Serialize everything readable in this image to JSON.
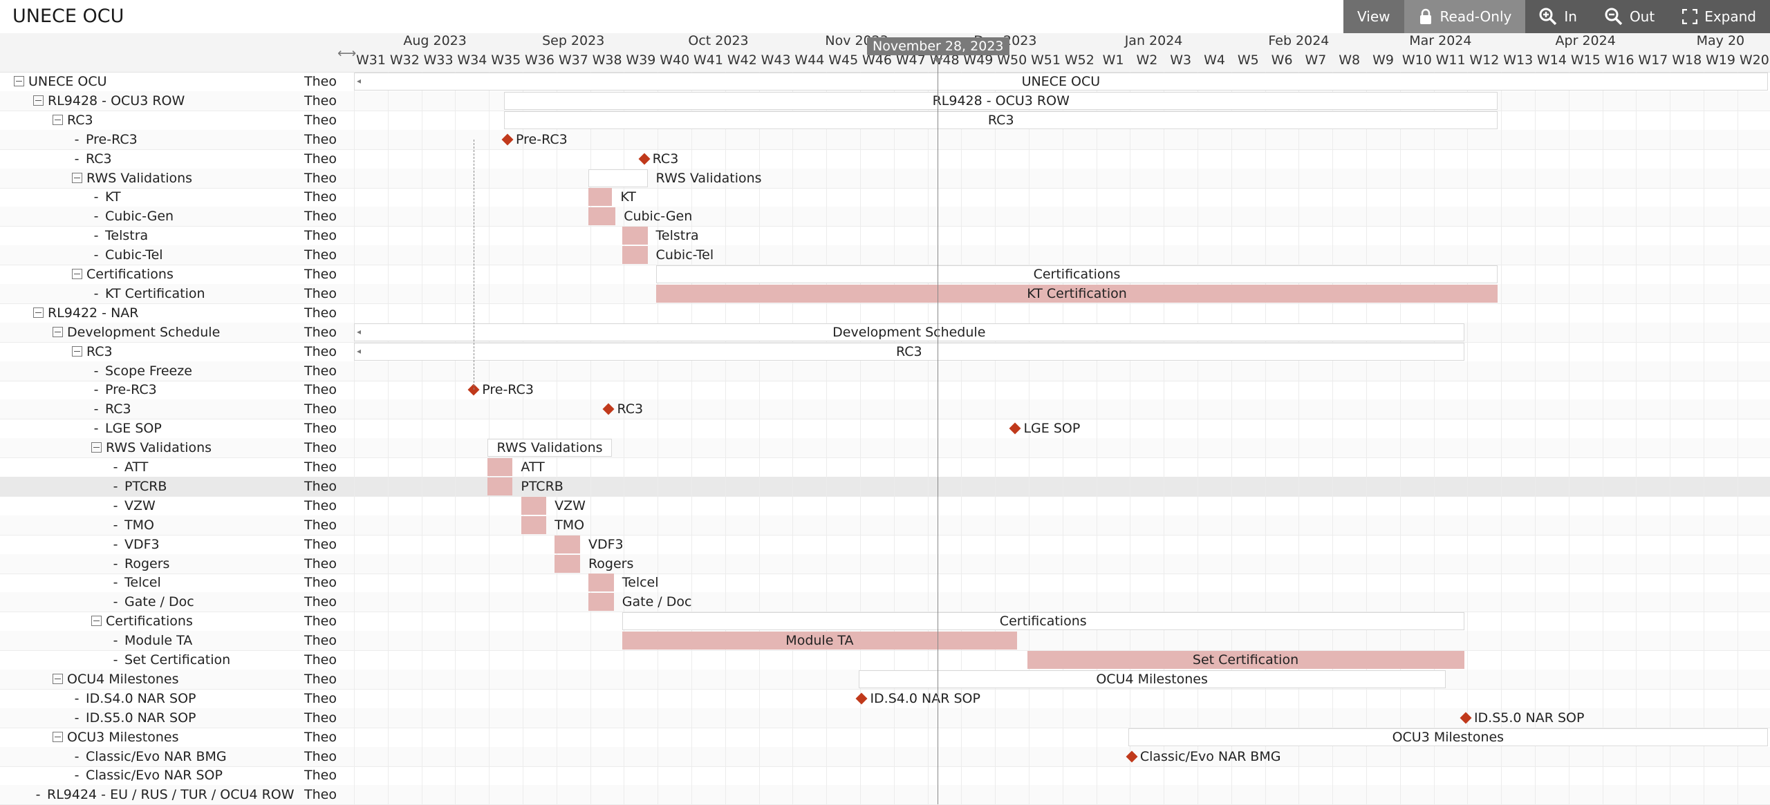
{
  "app": {
    "title": "UNECE OCU"
  },
  "toolbar": {
    "view_label": "View",
    "readonly_label": "Read-Only",
    "zoom_in_label": "In",
    "zoom_out_label": "Out",
    "expand_label": "Expand"
  },
  "timeline": {
    "months": [
      "Aug 2023",
      "Sep 2023",
      "Oct 2023",
      "Nov 2023",
      "Dec 2023",
      "Jan 2024",
      "Feb 2024",
      "Mar 2024",
      "Apr 2024",
      "May 20"
    ],
    "weeks": [
      "W31",
      "W32",
      "W33",
      "W34",
      "W35",
      "W36",
      "W37",
      "W38",
      "W39",
      "W40",
      "W41",
      "W42",
      "W43",
      "W44",
      "W45",
      "W46",
      "W47",
      "W48",
      "W49",
      "W50",
      "W51",
      "W52",
      "W1",
      "W2",
      "W3",
      "W4",
      "W5",
      "W6",
      "W7",
      "W8",
      "W9",
      "W10",
      "W11",
      "W12",
      "W13",
      "W14",
      "W15",
      "W16",
      "W17",
      "W18",
      "W19",
      "W20"
    ],
    "today_label": "November 28, 2023"
  },
  "rows": [
    {
      "label": "UNECE OCU",
      "owner": "Theo",
      "level": 0,
      "kind": "group"
    },
    {
      "label": "RL9428 - OCU3 ROW",
      "owner": "Theo",
      "level": 1,
      "kind": "group"
    },
    {
      "label": "RC3",
      "owner": "Theo",
      "level": 2,
      "kind": "group"
    },
    {
      "label": "Pre-RC3",
      "owner": "Theo",
      "level": 3,
      "kind": "leaf"
    },
    {
      "label": "RC3",
      "owner": "Theo",
      "level": 3,
      "kind": "leaf"
    },
    {
      "label": "RWS Validations",
      "owner": "Theo",
      "level": 3,
      "kind": "group"
    },
    {
      "label": "KT",
      "owner": "Theo",
      "level": 4,
      "kind": "leaf"
    },
    {
      "label": "Cubic-Gen",
      "owner": "Theo",
      "level": 4,
      "kind": "leaf"
    },
    {
      "label": "Telstra",
      "owner": "Theo",
      "level": 4,
      "kind": "leaf"
    },
    {
      "label": "Cubic-Tel",
      "owner": "Theo",
      "level": 4,
      "kind": "leaf"
    },
    {
      "label": "Certifications",
      "owner": "Theo",
      "level": 3,
      "kind": "group"
    },
    {
      "label": "KT Certification",
      "owner": "Theo",
      "level": 4,
      "kind": "leaf"
    },
    {
      "label": "RL9422 - NAR",
      "owner": "Theo",
      "level": 1,
      "kind": "group"
    },
    {
      "label": "Development Schedule",
      "owner": "Theo",
      "level": 2,
      "kind": "group"
    },
    {
      "label": "RC3",
      "owner": "Theo",
      "level": 3,
      "kind": "group"
    },
    {
      "label": "Scope Freeze",
      "owner": "Theo",
      "level": 4,
      "kind": "leaf"
    },
    {
      "label": "Pre-RC3",
      "owner": "Theo",
      "level": 4,
      "kind": "leaf"
    },
    {
      "label": "RC3",
      "owner": "Theo",
      "level": 4,
      "kind": "leaf"
    },
    {
      "label": "LGE SOP",
      "owner": "Theo",
      "level": 4,
      "kind": "leaf"
    },
    {
      "label": "RWS Validations",
      "owner": "Theo",
      "level": 4,
      "kind": "group"
    },
    {
      "label": "ATT",
      "owner": "Theo",
      "level": 5,
      "kind": "leaf"
    },
    {
      "label": "PTCRB",
      "owner": "Theo",
      "level": 5,
      "kind": "leaf"
    },
    {
      "label": "VZW",
      "owner": "Theo",
      "level": 5,
      "kind": "leaf"
    },
    {
      "label": "TMO",
      "owner": "Theo",
      "level": 5,
      "kind": "leaf"
    },
    {
      "label": "VDF3",
      "owner": "Theo",
      "level": 5,
      "kind": "leaf"
    },
    {
      "label": "Rogers",
      "owner": "Theo",
      "level": 5,
      "kind": "leaf"
    },
    {
      "label": "Telcel",
      "owner": "Theo",
      "level": 5,
      "kind": "leaf"
    },
    {
      "label": "Gate / Doc",
      "owner": "Theo",
      "level": 5,
      "kind": "leaf"
    },
    {
      "label": "Certifications",
      "owner": "Theo",
      "level": 4,
      "kind": "group"
    },
    {
      "label": "Module TA",
      "owner": "Theo",
      "level": 5,
      "kind": "leaf"
    },
    {
      "label": "Set Certification",
      "owner": "Theo",
      "level": 5,
      "kind": "leaf"
    },
    {
      "label": "OCU4 Milestones",
      "owner": "Theo",
      "level": 2,
      "kind": "group"
    },
    {
      "label": "ID.S4.0 NAR SOP",
      "owner": "Theo",
      "level": 3,
      "kind": "leaf"
    },
    {
      "label": "ID.S5.0 NAR SOP",
      "owner": "Theo",
      "level": 3,
      "kind": "leaf"
    },
    {
      "label": "OCU3 Milestones",
      "owner": "Theo",
      "level": 2,
      "kind": "group"
    },
    {
      "label": "Classic/Evo NAR BMG",
      "owner": "Theo",
      "level": 3,
      "kind": "leaf"
    },
    {
      "label": "Classic/Evo NAR SOP",
      "owner": "Theo",
      "level": 3,
      "kind": "leaf"
    },
    {
      "label": "RL9424 - EU / RUS / TUR / OCU4 ROW",
      "owner": "Theo",
      "level": 1,
      "kind": "leaf"
    }
  ],
  "bars": [
    {
      "row": 0,
      "type": "summary",
      "start": 0,
      "end": 41.9,
      "label": "UNECE OCU",
      "label_pos": "inside",
      "caret": "left"
    },
    {
      "row": 1,
      "type": "summary",
      "start": 4.45,
      "end": 33.9,
      "label": "RL9428 - OCU3 ROW",
      "label_pos": "inside"
    },
    {
      "row": 2,
      "type": "summary",
      "start": 4.45,
      "end": 33.9,
      "label": "RC3",
      "label_pos": "inside"
    },
    {
      "row": 3,
      "type": "milestone",
      "at": 4.55,
      "label": "Pre-RC3"
    },
    {
      "row": 4,
      "type": "milestone",
      "at": 8.6,
      "label": "RC3"
    },
    {
      "row": 5,
      "type": "summary",
      "start": 6.95,
      "end": 8.7,
      "label": "RWS Validations",
      "label_pos": "right"
    },
    {
      "row": 6,
      "type": "task",
      "start": 6.95,
      "end": 7.65,
      "label": "KT",
      "label_pos": "right"
    },
    {
      "row": 7,
      "type": "task",
      "start": 6.95,
      "end": 7.75,
      "label": "Cubic-Gen",
      "label_pos": "right"
    },
    {
      "row": 8,
      "type": "task",
      "start": 7.95,
      "end": 8.7,
      "label": "Telstra",
      "label_pos": "right"
    },
    {
      "row": 9,
      "type": "task",
      "start": 7.95,
      "end": 8.7,
      "label": "Cubic-Tel",
      "label_pos": "right"
    },
    {
      "row": 10,
      "type": "summary",
      "start": 8.95,
      "end": 33.9,
      "label": "Certifications",
      "label_pos": "inside"
    },
    {
      "row": 11,
      "type": "task",
      "start": 8.95,
      "end": 33.9,
      "label": "KT Certification",
      "label_pos": "inside"
    },
    {
      "row": 13,
      "type": "summary",
      "start": 0,
      "end": 32.9,
      "label": "Development Schedule",
      "label_pos": "inside",
      "caret": "left"
    },
    {
      "row": 14,
      "type": "summary",
      "start": 0,
      "end": 32.9,
      "label": "RC3",
      "label_pos": "inside",
      "caret": "left"
    },
    {
      "row": 16,
      "type": "milestone",
      "at": 3.55,
      "label": "Pre-RC3"
    },
    {
      "row": 17,
      "type": "milestone",
      "at": 7.55,
      "label": "RC3"
    },
    {
      "row": 18,
      "type": "milestone",
      "at": 19.6,
      "label": "LGE SOP"
    },
    {
      "row": 19,
      "type": "summary",
      "start": 3.95,
      "end": 7.65,
      "label": "RWS Validations",
      "label_pos": "inside"
    },
    {
      "row": 20,
      "type": "task",
      "start": 3.95,
      "end": 4.7,
      "label": "ATT",
      "label_pos": "right"
    },
    {
      "row": 21,
      "type": "task",
      "start": 3.95,
      "end": 4.7,
      "label": "PTCRB",
      "label_pos": "right"
    },
    {
      "row": 22,
      "type": "task",
      "start": 4.95,
      "end": 5.7,
      "label": "VZW",
      "label_pos": "right"
    },
    {
      "row": 23,
      "type": "task",
      "start": 4.95,
      "end": 5.7,
      "label": "TMO",
      "label_pos": "right"
    },
    {
      "row": 24,
      "type": "task",
      "start": 5.95,
      "end": 6.7,
      "label": "VDF3",
      "label_pos": "right"
    },
    {
      "row": 25,
      "type": "task",
      "start": 5.95,
      "end": 6.7,
      "label": "Rogers",
      "label_pos": "right"
    },
    {
      "row": 26,
      "type": "task",
      "start": 6.95,
      "end": 7.7,
      "label": "Telcel",
      "label_pos": "right"
    },
    {
      "row": 27,
      "type": "task",
      "start": 6.95,
      "end": 7.7,
      "label": "Gate / Doc",
      "label_pos": "right"
    },
    {
      "row": 28,
      "type": "summary",
      "start": 7.95,
      "end": 32.9,
      "label": "Certifications",
      "label_pos": "inside"
    },
    {
      "row": 29,
      "type": "task",
      "start": 7.95,
      "end": 19.65,
      "label": "Module TA",
      "label_pos": "inside"
    },
    {
      "row": 30,
      "type": "task",
      "start": 19.95,
      "end": 32.9,
      "label": "Set Certification",
      "label_pos": "inside"
    },
    {
      "row": 31,
      "type": "summary",
      "start": 14.95,
      "end": 32.35,
      "label": "OCU4 Milestones",
      "label_pos": "inside"
    },
    {
      "row": 32,
      "type": "milestone",
      "at": 15.05,
      "label": "ID.S4.0 NAR SOP"
    },
    {
      "row": 33,
      "type": "milestone",
      "at": 32.95,
      "label": "ID.S5.0 NAR SOP"
    },
    {
      "row": 34,
      "type": "summary",
      "start": 22.95,
      "end": 41.9,
      "label": "OCU3 Milestones",
      "label_pos": "inside"
    },
    {
      "row": 35,
      "type": "milestone",
      "at": 23.05,
      "label": "Classic/Evo NAR BMG"
    }
  ],
  "colors": {
    "task_fill": "#e4b6b4",
    "milestone": "#c0391b",
    "toolbar_bg": "#5b5b5b",
    "header_bg": "#f4f4f4"
  },
  "icons": {
    "readonly": "lock-icon",
    "zoom_in": "zoom-in-icon",
    "zoom_out": "zoom-out-icon",
    "expand": "expand-icon",
    "resize": "resize-arrows-icon"
  }
}
